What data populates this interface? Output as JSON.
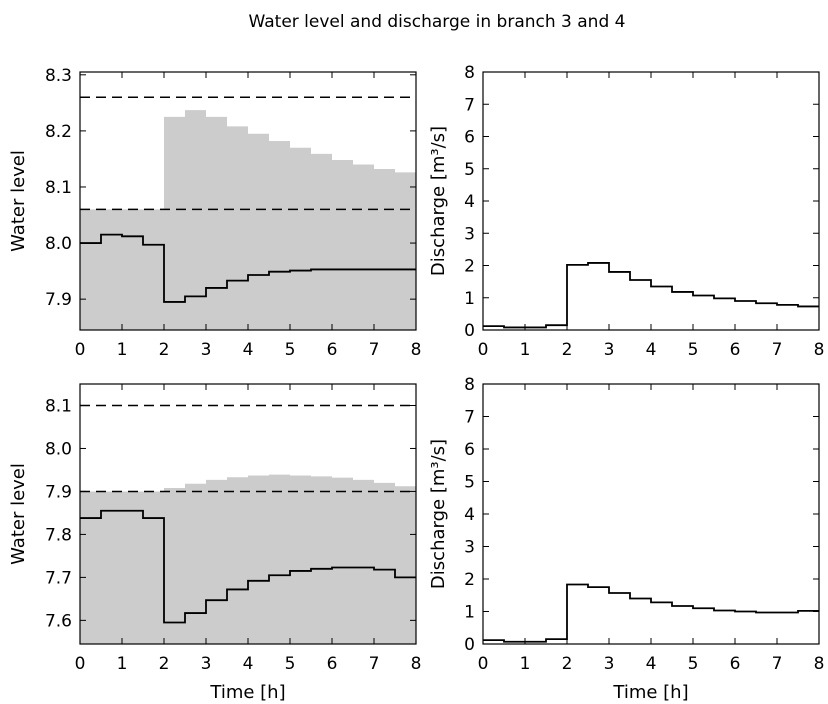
{
  "figure": {
    "title": "Water level and discharge in branch 3 and 4"
  },
  "chart_data": [
    {
      "type": "line",
      "panel": "top-left",
      "xlabel": "",
      "ylabel": "Water level",
      "xlim": [
        0,
        8
      ],
      "ylim": [
        7.845,
        8.305
      ],
      "xticks": [
        "0",
        "1",
        "2",
        "3",
        "4",
        "5",
        "6",
        "7",
        "8"
      ],
      "yticks": [
        "7.9",
        "8.0",
        "8.1",
        "8.2",
        "8.3"
      ],
      "ytick_values": [
        7.9,
        8.0,
        8.1,
        8.2,
        8.3
      ],
      "step_edges": [
        0,
        0.5,
        1,
        1.5,
        2,
        2.5,
        3,
        3.5,
        4,
        4.5,
        5,
        5.5,
        6,
        6.5,
        7,
        7.5,
        8
      ],
      "series": [
        {
          "role": "water-level",
          "style": "black step line",
          "values": [
            8.0,
            8.015,
            8.012,
            7.997,
            7.895,
            7.905,
            7.92,
            7.933,
            7.943,
            7.949,
            7.951,
            7.953,
            7.953,
            7.953,
            7.953,
            7.953
          ]
        },
        {
          "role": "band",
          "style": "gray fill",
          "values": [
            8.06,
            8.06,
            8.06,
            8.06,
            8.225,
            8.237,
            8.225,
            8.208,
            8.195,
            8.182,
            8.17,
            8.159,
            8.148,
            8.14,
            8.132,
            8.126
          ]
        }
      ],
      "dashed_lines": [
        8.06,
        8.26
      ],
      "grid": false
    },
    {
      "type": "line",
      "panel": "top-right",
      "xlabel": "",
      "ylabel": "Discharge [m³/s]",
      "xlim": [
        0,
        8
      ],
      "ylim": [
        0,
        8
      ],
      "xticks": [
        "0",
        "1",
        "2",
        "3",
        "4",
        "5",
        "6",
        "7",
        "8"
      ],
      "yticks": [
        "0",
        "1",
        "2",
        "3",
        "4",
        "5",
        "6",
        "7",
        "8"
      ],
      "ytick_values": [
        0,
        1,
        2,
        3,
        4,
        5,
        6,
        7,
        8
      ],
      "step_edges": [
        0,
        0.5,
        1,
        1.5,
        2,
        2.5,
        3,
        3.5,
        4,
        4.5,
        5,
        5.5,
        6,
        6.5,
        7,
        7.5,
        8
      ],
      "series": [
        {
          "role": "discharge",
          "style": "black step line",
          "values": [
            0.12,
            0.08,
            0.08,
            0.15,
            2.02,
            2.08,
            1.8,
            1.55,
            1.35,
            1.18,
            1.07,
            0.98,
            0.9,
            0.83,
            0.78,
            0.73
          ]
        }
      ],
      "grid": false
    },
    {
      "type": "line",
      "panel": "bottom-left",
      "xlabel": "Time [h]",
      "ylabel": "Water level",
      "xlim": [
        0,
        8
      ],
      "ylim": [
        7.545,
        8.15
      ],
      "xticks": [
        "0",
        "1",
        "2",
        "3",
        "4",
        "5",
        "6",
        "7",
        "8"
      ],
      "yticks": [
        "7.6",
        "7.7",
        "7.8",
        "7.9",
        "8.0",
        "8.1"
      ],
      "ytick_values": [
        7.6,
        7.7,
        7.8,
        7.9,
        8.0,
        8.1
      ],
      "step_edges": [
        0,
        0.5,
        1,
        1.5,
        2,
        2.5,
        3,
        3.5,
        4,
        4.5,
        5,
        5.5,
        6,
        6.5,
        7,
        7.5,
        8
      ],
      "series": [
        {
          "role": "water-level",
          "style": "black step line",
          "values": [
            7.838,
            7.855,
            7.855,
            7.838,
            7.595,
            7.617,
            7.647,
            7.672,
            7.692,
            7.705,
            7.715,
            7.72,
            7.723,
            7.723,
            7.718,
            7.7
          ]
        },
        {
          "role": "band",
          "style": "gray fill",
          "values": [
            7.9,
            7.9,
            7.9,
            7.9,
            7.908,
            7.918,
            7.927,
            7.933,
            7.937,
            7.939,
            7.937,
            7.935,
            7.932,
            7.927,
            7.92,
            7.912
          ]
        }
      ],
      "dashed_lines": [
        7.9,
        8.1
      ],
      "grid": false
    },
    {
      "type": "line",
      "panel": "bottom-right",
      "xlabel": "Time [h]",
      "ylabel": "Discharge [m³/s]",
      "xlim": [
        0,
        8
      ],
      "ylim": [
        0,
        8
      ],
      "xticks": [
        "0",
        "1",
        "2",
        "3",
        "4",
        "5",
        "6",
        "7",
        "8"
      ],
      "yticks": [
        "0",
        "1",
        "2",
        "3",
        "4",
        "5",
        "6",
        "7",
        "8"
      ],
      "ytick_values": [
        0,
        1,
        2,
        3,
        4,
        5,
        6,
        7,
        8
      ],
      "step_edges": [
        0,
        0.5,
        1,
        1.5,
        2,
        2.5,
        3,
        3.5,
        4,
        4.5,
        5,
        5.5,
        6,
        6.5,
        7,
        7.5,
        8
      ],
      "series": [
        {
          "role": "discharge",
          "style": "black step line",
          "values": [
            0.12,
            0.07,
            0.07,
            0.15,
            1.83,
            1.75,
            1.57,
            1.4,
            1.28,
            1.17,
            1.1,
            1.03,
            1.0,
            0.97,
            0.97,
            1.02
          ]
        }
      ],
      "grid": false
    }
  ],
  "colors": {
    "band_fill": "#cccccc",
    "line": "#000000",
    "axes": "#000000"
  }
}
